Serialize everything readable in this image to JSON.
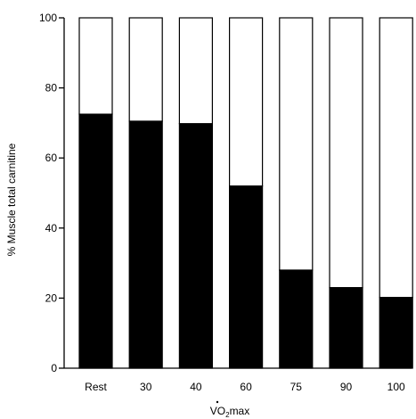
{
  "chart_data": {
    "type": "bar",
    "stacked": true,
    "title": "",
    "ylabel": "% Muscle total carnitine",
    "xlabel": {
      "main": "VO",
      "sub": "2",
      "rest": "max",
      "dot_over": "V"
    },
    "categories": [
      "Rest",
      "30",
      "40",
      "60",
      "75",
      "90",
      "100"
    ],
    "series": [
      {
        "values": [
          72.5,
          70.5,
          69.8,
          52.0,
          28.0,
          23.0,
          20.2
        ],
        "color": "#000000"
      },
      {
        "values": [
          27.5,
          29.5,
          30.2,
          48.0,
          72.0,
          77.0,
          79.8
        ],
        "color": "#ffffff"
      }
    ],
    "ylim": [
      0,
      100
    ],
    "yticks": [
      0,
      20,
      40,
      60,
      80,
      100
    ],
    "grid": false,
    "legend": "none"
  }
}
